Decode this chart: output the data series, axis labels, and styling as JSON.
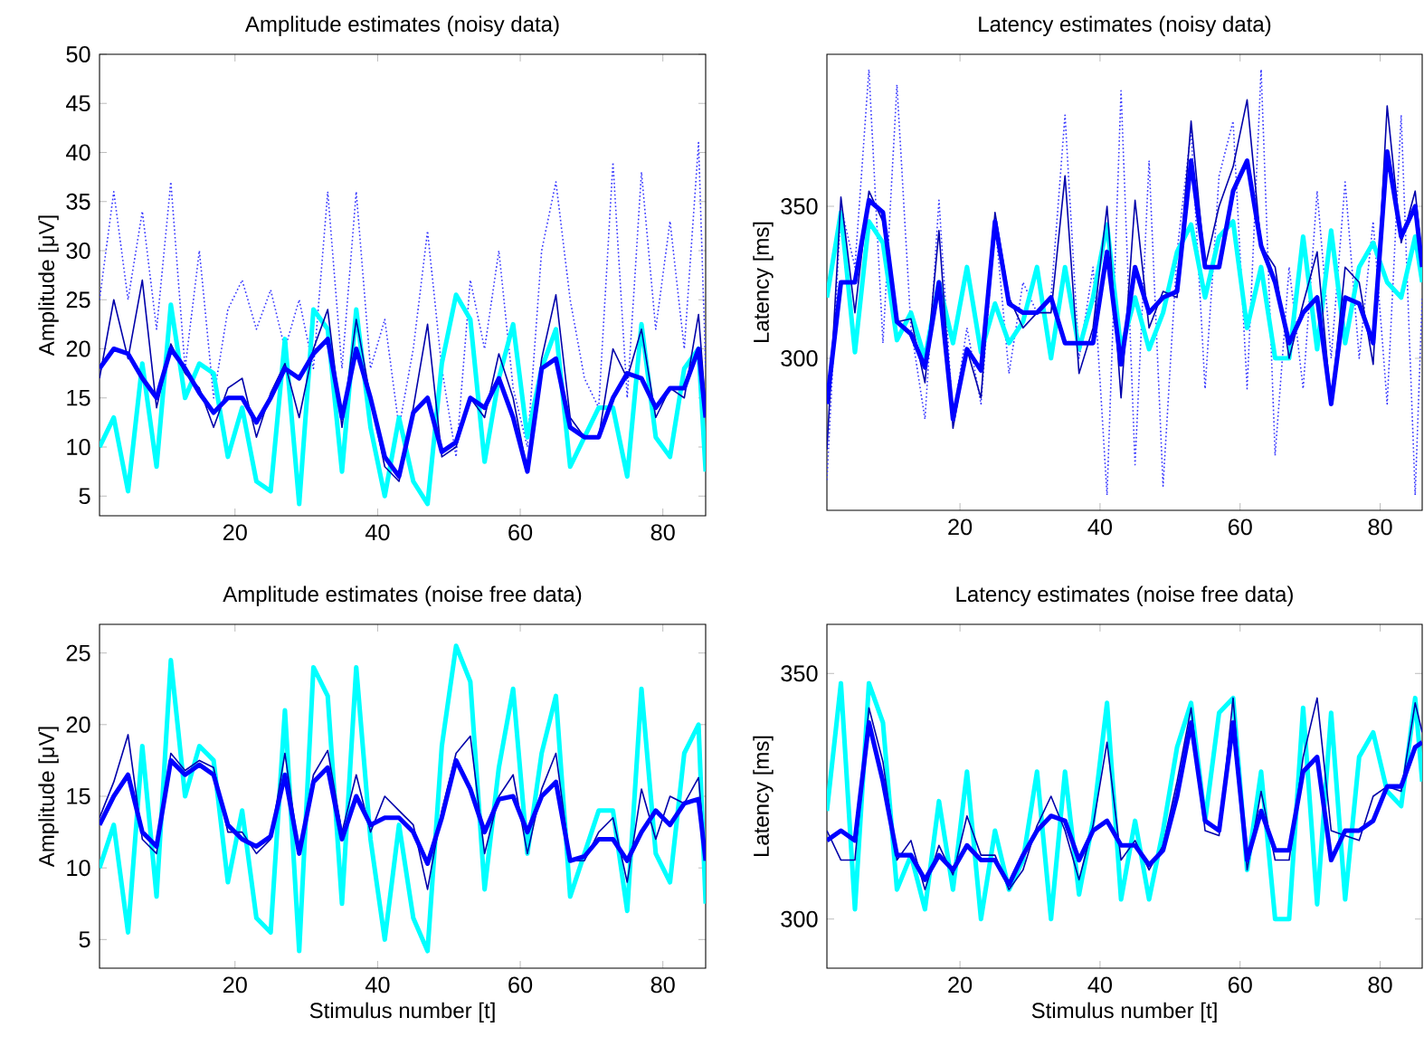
{
  "chart_data": [
    {
      "type": "line",
      "title": "Amplitude estimates (noisy data)",
      "ylabel": "Amplitude [μV]",
      "x": [
        1,
        3,
        5,
        7,
        9,
        11,
        13,
        15,
        17,
        19,
        21,
        23,
        25,
        27,
        29,
        31,
        33,
        35,
        37,
        39,
        41,
        43,
        45,
        47,
        49,
        51,
        53,
        55,
        57,
        59,
        61,
        63,
        65,
        67,
        69,
        71,
        73,
        75,
        77,
        79,
        81,
        83,
        85,
        86
      ],
      "xlim": [
        1,
        86
      ],
      "ylim": [
        3,
        50
      ],
      "xticks": [
        20,
        40,
        60,
        80
      ],
      "yticks": [
        5,
        10,
        15,
        20,
        25,
        30,
        35,
        40,
        45,
        50
      ],
      "series": [
        {
          "color": "#3333ff",
          "line_style": "dotted",
          "values": [
            25,
            36,
            25,
            34,
            22,
            37,
            18,
            30,
            15,
            24,
            27,
            22,
            26,
            20,
            25,
            18,
            36,
            18,
            36,
            18,
            23,
            12,
            20,
            32,
            18,
            9,
            27,
            20,
            30,
            16,
            10,
            30,
            37,
            25,
            17,
            14,
            39,
            15,
            38,
            22,
            33,
            20,
            41,
            18
          ]
        },
        {
          "color": "#00ffff",
          "values": [
            10,
            13,
            5.5,
            18.5,
            8,
            24.5,
            15,
            18.5,
            17.5,
            9,
            14,
            6.5,
            5.5,
            21,
            4.2,
            24,
            22,
            7.5,
            24,
            12,
            5,
            13,
            6.5,
            4.2,
            18.5,
            25.5,
            23,
            8.5,
            17,
            22.5,
            11,
            18,
            22,
            8,
            11,
            14,
            14,
            7,
            22.5,
            11,
            9,
            18,
            20,
            7.5
          ]
        },
        {
          "color": "#0000aa",
          "values": [
            17,
            25,
            19,
            27,
            14,
            20.5,
            17.5,
            16,
            12,
            16,
            17,
            11,
            15.5,
            18.5,
            13,
            20,
            24,
            12,
            23,
            15,
            8,
            6.5,
            14,
            22.5,
            9,
            10,
            15,
            13,
            19.5,
            15,
            7.5,
            19,
            25.5,
            13,
            11,
            11,
            20,
            17,
            22,
            13,
            16,
            15,
            23.5,
            14
          ]
        },
        {
          "color": "#0000ff",
          "values": [
            18,
            20,
            19.5,
            17,
            15,
            20,
            18,
            15.5,
            13.5,
            15,
            15,
            12.5,
            15,
            18,
            17,
            19.5,
            21,
            13,
            20,
            15,
            9,
            7,
            13.5,
            15,
            9.5,
            10.5,
            15,
            14,
            17,
            13,
            7.5,
            18,
            19,
            12,
            11,
            11,
            15,
            17.5,
            17,
            14,
            16,
            16,
            20,
            13
          ]
        }
      ]
    },
    {
      "type": "line",
      "title": "Latency estimates (noisy data)",
      "ylabel": "Latency [ms]",
      "x": [
        1,
        3,
        5,
        7,
        9,
        11,
        13,
        15,
        17,
        19,
        21,
        23,
        25,
        27,
        29,
        31,
        33,
        35,
        37,
        39,
        41,
        43,
        45,
        47,
        49,
        51,
        53,
        55,
        57,
        59,
        61,
        63,
        65,
        67,
        69,
        71,
        73,
        75,
        77,
        79,
        81,
        83,
        85,
        86
      ],
      "xlim": [
        1,
        86
      ],
      "ylim": [
        250,
        400
      ],
      "xticks": [
        20,
        40,
        60,
        80
      ],
      "yticks": [
        300,
        350
      ],
      "series": [
        {
          "color": "#3333ff",
          "line_style": "dotted",
          "values": [
            260,
            350,
            330,
            395,
            305,
            390,
            310,
            280,
            352,
            280,
            310,
            285,
            345,
            295,
            325,
            315,
            320,
            380,
            300,
            330,
            255,
            388,
            265,
            365,
            258,
            335,
            375,
            290,
            360,
            378,
            290,
            395,
            268,
            330,
            290,
            355,
            300,
            358,
            300,
            345,
            285,
            380,
            255,
            320
          ]
        },
        {
          "color": "#00ffff",
          "values": [
            320,
            348,
            302,
            345,
            338,
            306,
            315,
            300,
            325,
            305,
            330,
            302,
            318,
            305,
            312,
            330,
            300,
            330,
            303,
            320,
            344,
            303,
            320,
            303,
            315,
            335,
            344,
            320,
            340,
            345,
            310,
            330,
            300,
            300,
            340,
            303,
            342,
            305,
            330,
            338,
            325,
            320,
            340,
            325
          ]
        },
        {
          "color": "#0000aa",
          "values": [
            270,
            353,
            315,
            355,
            345,
            312,
            313,
            292,
            342,
            277,
            303,
            287,
            348,
            320,
            310,
            315,
            315,
            360,
            295,
            310,
            350,
            287,
            352,
            310,
            322,
            320,
            378,
            330,
            350,
            363,
            385,
            337,
            330,
            300,
            318,
            335,
            285,
            330,
            325,
            298,
            383,
            338,
            355,
            332
          ]
        },
        {
          "color": "#0000ff",
          "values": [
            285,
            325,
            325,
            352,
            348,
            312,
            308,
            297,
            325,
            280,
            303,
            296,
            345,
            318,
            315,
            315,
            320,
            305,
            305,
            305,
            335,
            298,
            330,
            315,
            320,
            322,
            365,
            330,
            330,
            355,
            365,
            337,
            325,
            305,
            315,
            320,
            285,
            320,
            318,
            305,
            368,
            340,
            350,
            330
          ]
        }
      ]
    },
    {
      "type": "line",
      "title": "Amplitude estimates (noise free data)",
      "xlabel": "Stimulus number [t]",
      "ylabel": "Amplitude [μV]",
      "x": [
        1,
        3,
        5,
        7,
        9,
        11,
        13,
        15,
        17,
        19,
        21,
        23,
        25,
        27,
        29,
        31,
        33,
        35,
        37,
        39,
        41,
        43,
        45,
        47,
        49,
        51,
        53,
        55,
        57,
        59,
        61,
        63,
        65,
        67,
        69,
        71,
        73,
        75,
        77,
        79,
        81,
        83,
        85,
        86
      ],
      "xlim": [
        1,
        86
      ],
      "ylim": [
        3,
        27
      ],
      "xticks": [
        20,
        40,
        60,
        80
      ],
      "yticks": [
        5,
        10,
        15,
        20,
        25
      ],
      "series": [
        {
          "color": "#00ffff",
          "values": [
            10,
            13,
            5.5,
            18.5,
            8,
            24.5,
            15,
            18.5,
            17.5,
            9,
            14,
            6.5,
            5.5,
            21,
            4.2,
            24,
            22,
            7.5,
            24,
            12,
            5,
            13,
            6.5,
            4.2,
            18.5,
            25.5,
            23,
            8.5,
            17,
            22.5,
            11,
            18,
            22,
            8,
            11,
            14,
            14,
            7,
            22.5,
            11,
            9,
            18,
            20,
            7.5
          ]
        },
        {
          "color": "#0000aa",
          "values": [
            13.5,
            16,
            19.3,
            12,
            11,
            18,
            16.8,
            17.5,
            17,
            12.5,
            12.5,
            11,
            12,
            18,
            11,
            16.5,
            18.2,
            12.5,
            16.5,
            12.5,
            15,
            14,
            13,
            8.5,
            14,
            18,
            19.2,
            11,
            15,
            16.5,
            11,
            15.5,
            18,
            10.5,
            10.5,
            12.5,
            13.5,
            9,
            15.5,
            12,
            15,
            14.5,
            16.3,
            10.5
          ]
        },
        {
          "color": "#0000ff",
          "values": [
            13,
            15,
            16.5,
            12.5,
            11.5,
            17.5,
            16.5,
            17.2,
            16.5,
            13,
            12,
            11.5,
            12.2,
            16.5,
            11,
            16,
            17,
            12,
            15,
            13,
            13.5,
            13.5,
            12.5,
            10.3,
            13.5,
            17.5,
            15.5,
            12.5,
            14.8,
            15,
            12.5,
            15,
            16,
            10.5,
            10.8,
            12,
            12,
            10.5,
            12.5,
            14,
            13,
            14.5,
            14.8,
            10.5
          ]
        }
      ]
    },
    {
      "type": "line",
      "title": "Latency estimates (noise free data)",
      "xlabel": "Stimulus number [t]",
      "ylabel": "Latency [ms]",
      "x": [
        1,
        3,
        5,
        7,
        9,
        11,
        13,
        15,
        17,
        19,
        21,
        23,
        25,
        27,
        29,
        31,
        33,
        35,
        37,
        39,
        41,
        43,
        45,
        47,
        49,
        51,
        53,
        55,
        57,
        59,
        61,
        63,
        65,
        67,
        69,
        71,
        73,
        75,
        77,
        79,
        81,
        83,
        85,
        86
      ],
      "xlim": [
        1,
        86
      ],
      "ylim": [
        290,
        360
      ],
      "xticks": [
        20,
        40,
        60,
        80
      ],
      "yticks": [
        300,
        350
      ],
      "series": [
        {
          "color": "#00ffff",
          "values": [
            322,
            348,
            302,
            348,
            340,
            306,
            313,
            302,
            324,
            306,
            330,
            300,
            318,
            306,
            312,
            330,
            300,
            330,
            305,
            320,
            344,
            304,
            320,
            304,
            318,
            335,
            344,
            320,
            342,
            345,
            310,
            330,
            300,
            300,
            343,
            303,
            342,
            304,
            333,
            338,
            326,
            323,
            345,
            328
          ]
        },
        {
          "color": "#0000aa",
          "values": [
            318,
            312,
            312,
            343,
            332,
            312,
            316,
            306,
            315,
            309,
            321,
            313,
            313,
            306,
            310,
            319,
            325,
            318,
            308,
            319,
            336,
            312,
            316,
            310,
            315,
            328,
            343,
            318,
            317,
            345,
            310,
            326,
            312,
            312,
            333,
            345,
            318,
            317,
            316,
            325,
            327,
            326,
            344,
            338
          ]
        },
        {
          "color": "#0000ff",
          "values": [
            316,
            318,
            316,
            340,
            328,
            313,
            313,
            308,
            313,
            310,
            315,
            312,
            312,
            307,
            313,
            318,
            321,
            320,
            312,
            318,
            320,
            315,
            315,
            311,
            314,
            325,
            340,
            320,
            318,
            340,
            312,
            322,
            314,
            314,
            330,
            333,
            312,
            318,
            318,
            320,
            327,
            327,
            335,
            336
          ]
        }
      ]
    }
  ]
}
